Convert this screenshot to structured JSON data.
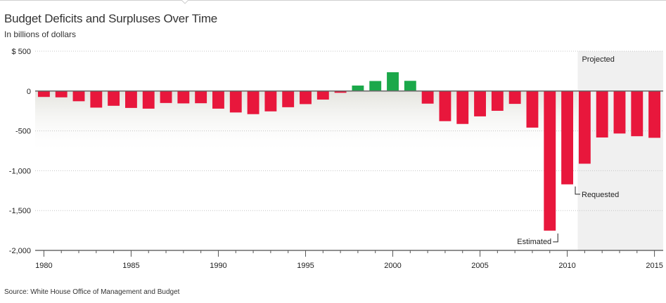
{
  "header": {
    "title": "Budget Deficits and Surpluses Over Time",
    "subtitle": "In billions of dollars"
  },
  "footer": {
    "source": "Source: White House Office of Management and Budget"
  },
  "chart_data": {
    "type": "bar",
    "title": "Budget Deficits and Surpluses Over Time",
    "subtitle": "In billions of dollars",
    "xlabel": "",
    "ylabel": "",
    "ylim": [
      -2000,
      500
    ],
    "xlim": [
      1979.5,
      2015.5
    ],
    "y_ticks": [
      {
        "value": 500,
        "label": "$ 500"
      },
      {
        "value": 0,
        "label": "0"
      },
      {
        "value": -500,
        "label": "-500"
      },
      {
        "value": -1000,
        "label": "-1,000"
      },
      {
        "value": -1500,
        "label": "-1,500"
      },
      {
        "value": -2000,
        "label": "-2,000"
      }
    ],
    "x_ticks": [
      {
        "value": 1980,
        "label": "1980"
      },
      {
        "value": 1985,
        "label": "1985"
      },
      {
        "value": 1990,
        "label": "1990"
      },
      {
        "value": 1995,
        "label": "1995"
      },
      {
        "value": 2000,
        "label": "2000"
      },
      {
        "value": 2005,
        "label": "2005"
      },
      {
        "value": 2010,
        "label": "2010"
      },
      {
        "value": 2015,
        "label": "2015"
      }
    ],
    "grid": "horizontal dotted",
    "colors": {
      "deficit": "#e8173c",
      "surplus": "#1ba84a",
      "projected_shade": "#f0f0f0",
      "zero_line": "#666666"
    },
    "projected": {
      "label": "Projected",
      "start": 2010.6,
      "end": 2015.5
    },
    "series": [
      {
        "x": [
          1980,
          1981,
          1982,
          1983,
          1984,
          1985,
          1986,
          1987,
          1988,
          1989,
          1990,
          1991,
          1992,
          1993,
          1994,
          1995,
          1996,
          1997,
          1998,
          1999,
          2000,
          2001,
          2002,
          2003,
          2004,
          2005,
          2006,
          2007,
          2008,
          2009,
          2010,
          2011,
          2012,
          2013,
          2014,
          2015
        ],
        "values": [
          -74,
          -79,
          -128,
          -208,
          -185,
          -212,
          -221,
          -150,
          -155,
          -153,
          -221,
          -269,
          -290,
          -255,
          -203,
          -164,
          -107,
          -22,
          69,
          126,
          236,
          128,
          -158,
          -378,
          -413,
          -318,
          -248,
          -161,
          -459,
          -1752,
          -1171,
          -912,
          -583,
          -533,
          -567,
          -587
        ]
      }
    ],
    "annotations": [
      {
        "x": 2009,
        "y": -1752,
        "label": "Estimated"
      },
      {
        "x": 2010,
        "y": -1171,
        "label": "Requested"
      }
    ]
  }
}
